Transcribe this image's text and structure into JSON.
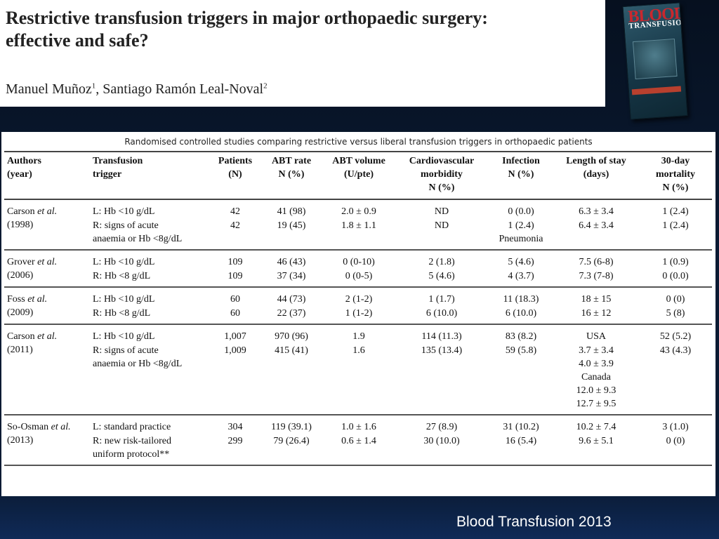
{
  "header": {
    "title_line1": "Restrictive transfusion triggers in major orthopaedic surgery:",
    "title_line2": "effective and safe?",
    "author1": "Manuel Muñoz",
    "author1_sup": "1",
    "author_sep": ", ",
    "author2": "Santiago Ramón Leal-Noval",
    "author2_sup": "2"
  },
  "journal_cover": {
    "word1": "BLOOD",
    "word2": "TRANSFUSION"
  },
  "table": {
    "caption": "Randomised controlled studies comparing restrictive versus liberal transfusion triggers in orthopaedic patients",
    "headers": [
      [
        "Authors",
        "(year)"
      ],
      [
        "Transfusion",
        "trigger"
      ],
      [
        "Patients",
        "(N)"
      ],
      [
        "ABT rate",
        "N (%)"
      ],
      [
        "ABT volume",
        "(U/pte)"
      ],
      [
        "Cardiovascular",
        "morbidity",
        "N (%)"
      ],
      [
        "Infection",
        "N (%)"
      ],
      [
        "Length of stay",
        "(days)"
      ],
      [
        "30-day",
        "mortality",
        "N (%)"
      ]
    ],
    "groups": [
      {
        "author": "Carson",
        "etal": "et al.",
        "year": "(1998)",
        "rows": [
          {
            "trigger": [
              "L: Hb <10 g/dL"
            ],
            "patients": "42",
            "abt_rate": "41 (98)",
            "abt_volume": "2.0 ± 0.9",
            "cardio": "ND",
            "infection": [
              "0 (0.0)"
            ],
            "los": [
              "6.3 ± 3.4"
            ],
            "mortality": "1 (2.4)"
          },
          {
            "trigger": [
              "R: signs of acute",
              "anaemia or Hb <8g/dL"
            ],
            "patients": "42",
            "abt_rate": "19 (45)",
            "abt_volume": "1.8 ± 1.1",
            "cardio": "ND",
            "infection": [
              "1 (2.4)",
              "Pneumonia"
            ],
            "los": [
              "6.4 ± 3.4"
            ],
            "mortality": "1 (2.4)"
          }
        ]
      },
      {
        "author": "Grover",
        "etal": "et al.",
        "year": "(2006)",
        "rows": [
          {
            "trigger": [
              "L: Hb <10 g/dL"
            ],
            "patients": "109",
            "abt_rate": "46 (43)",
            "abt_volume": "0 (0-10)",
            "cardio": "2 (1.8)",
            "infection": [
              "5 (4.6)"
            ],
            "los": [
              "7.5 (6-8)"
            ],
            "mortality": "1 (0.9)"
          },
          {
            "trigger": [
              "R: Hb <8 g/dL"
            ],
            "patients": "109",
            "abt_rate": "37 (34)",
            "abt_volume": "0 (0-5)",
            "cardio": "5 (4.6)",
            "infection": [
              "4 (3.7)"
            ],
            "los": [
              "7.3 (7-8)"
            ],
            "mortality": "0 (0.0)"
          }
        ]
      },
      {
        "author": "Foss",
        "etal": "et al.",
        "year": "(2009)",
        "rows": [
          {
            "trigger": [
              "L: Hb <10 g/dL"
            ],
            "patients": "60",
            "abt_rate": "44 (73)",
            "abt_volume": "2 (1-2)",
            "cardio": "1 (1.7)",
            "infection": [
              "11 (18.3)"
            ],
            "los": [
              "18 ± 15"
            ],
            "mortality": "0 (0)"
          },
          {
            "trigger": [
              "R: Hb <8 g/dL"
            ],
            "patients": "60",
            "abt_rate": "22 (37)",
            "abt_volume": "1 (1-2)",
            "cardio": "6 (10.0)",
            "infection": [
              "6 (10.0)"
            ],
            "los": [
              "16 ± 12"
            ],
            "mortality": "5 (8)"
          }
        ]
      },
      {
        "author": "Carson",
        "etal": "et al.",
        "year": "(2011)",
        "rows": [
          {
            "trigger": [
              "L: Hb <10 g/dL"
            ],
            "patients": "1,007",
            "abt_rate": "970 (96)",
            "abt_volume": "1.9",
            "cardio": "114 (11.3)",
            "infection": [
              "83 (8.2)"
            ],
            "los": [
              "USA"
            ],
            "mortality": "52 (5.2)"
          },
          {
            "trigger": [
              "R: signs of acute",
              "anaemia  or Hb <8g/dL"
            ],
            "patients": "1,009",
            "abt_rate": "415 (41)",
            "abt_volume": "1.6",
            "cardio": "135 (13.4)",
            "infection": [
              "59 (5.8)"
            ],
            "los": [
              "3.7 ± 3.4",
              "4.0 ± 3.9",
              "Canada",
              "12.0 ± 9.3",
              "12.7 ± 9.5"
            ],
            "mortality": "43 (4.3)"
          }
        ]
      },
      {
        "author": "So-Osman",
        "etal": "et al.",
        "year": "(2013)",
        "rows": [
          {
            "trigger": [
              "L: standard practice"
            ],
            "patients": "304",
            "abt_rate": "119 (39.1)",
            "abt_volume": "1.0 ± 1.6",
            "cardio": "27 (8.9)",
            "infection": [
              "31 (10.2)"
            ],
            "los": [
              "10.2 ± 7.4"
            ],
            "mortality": "3 (1.0)"
          },
          {
            "trigger": [
              "R: new risk-tailored",
              "uniform protocol**"
            ],
            "patients": "299",
            "abt_rate": "79 (26.4)",
            "abt_volume": "0.6 ± 1.4",
            "cardio": "30 (10.0)",
            "infection": [
              "16 (5.4)"
            ],
            "los": [
              "9.6 ± 5.1"
            ],
            "mortality": "0 (0)"
          }
        ]
      }
    ]
  },
  "footer": {
    "source": "Blood Transfusion 2013"
  }
}
